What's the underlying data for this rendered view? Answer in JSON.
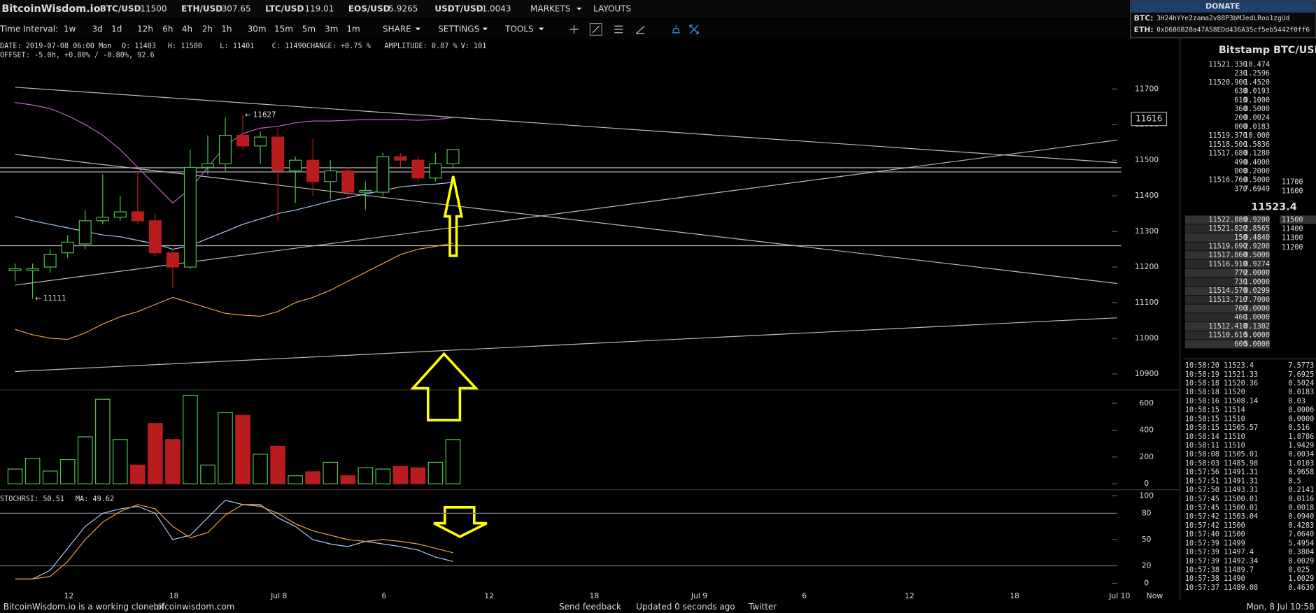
{
  "header": {
    "logo": "BitcoinWisdom.io",
    "tickers": [
      {
        "pair": "BTC/USD",
        "price": 11500
      },
      {
        "pair": "ETH/USD",
        "price": 307.65
      },
      {
        "pair": "LTC/USD",
        "price": 119.01
      },
      {
        "pair": "EOS/USD",
        "price": 5.9265
      },
      {
        "pair": "USDT/USD",
        "price": 1.0043
      }
    ],
    "menus": [
      "MARKETS",
      "LAYOUTS"
    ]
  },
  "donate": {
    "title": "DONATE",
    "rows": [
      {
        "coin": "BTC:",
        "address": "3H24hYYe2zama2v88P3bMJedLRoo1zgUd"
      },
      {
        "coin": "ETH:",
        "address": "0xD686B28a47A58EDd436A35cf5eb5442f0ff6"
      }
    ]
  },
  "toolbar": {
    "label": "Time Interval:",
    "intervals": [
      "1w",
      "3d",
      "1d",
      "12h",
      "6h",
      "4h",
      "2h",
      "1h",
      "30m",
      "15m",
      "5m",
      "3m",
      "1m"
    ],
    "active": "1h",
    "menus": [
      "SHARE",
      "SETTINGS",
      "TOOLS"
    ]
  },
  "info": {
    "line1": [
      "DATE: 2019-07-08 06:00 Mon",
      "O: 11403",
      "H: 11500",
      "L: 11401",
      "C: 11490",
      "CHANGE: +0.75 %",
      "AMPLITUDE: 0.87 %",
      "V: 101"
    ],
    "line2": "OFFSET: -5.0h, +0.80% / -0.80%, 92.6"
  },
  "chart_data": {
    "type": "candlestick",
    "up_color": "#4fc04f",
    "down_color": "#b81c1c",
    "x_labels": [
      "12",
      "18",
      "Jul 8",
      "6",
      "12",
      "18",
      "Jul 9",
      "6",
      "12",
      "18",
      "Jul 10"
    ],
    "now_label": "Now",
    "open": [
      11190,
      11190,
      11200,
      11240,
      11265,
      11330,
      11340,
      11355,
      11330,
      11240,
      11200,
      11480,
      11490,
      11570,
      11540,
      11565,
      11470,
      11500,
      11440,
      11470,
      11410,
      11410,
      11510,
      11500,
      11450,
      11490
    ],
    "high": [
      11210,
      11210,
      11250,
      11290,
      11360,
      11460,
      11400,
      11470,
      11350,
      11250,
      11530,
      11570,
      11620,
      11627,
      11580,
      11590,
      11510,
      11560,
      11500,
      11480,
      11440,
      11520,
      11520,
      11510,
      11520,
      11530
    ],
    "low": [
      11160,
      11111,
      11185,
      11225,
      11250,
      11320,
      11330,
      11320,
      11230,
      11140,
      11195,
      11460,
      11470,
      11530,
      11490,
      11330,
      11380,
      11400,
      11390,
      11390,
      11360,
      11400,
      11480,
      11440,
      11440,
      11480
    ],
    "close": [
      11195,
      11195,
      11235,
      11270,
      11330,
      11340,
      11355,
      11330,
      11240,
      11200,
      11480,
      11490,
      11570,
      11540,
      11565,
      11470,
      11500,
      11440,
      11470,
      11410,
      11415,
      11510,
      11500,
      11450,
      11490,
      11530
    ],
    "ylim": [
      10855,
      11832
    ],
    "yticks": [
      10900,
      11000,
      11100,
      11200,
      11300,
      11400,
      11500,
      11600,
      11700
    ],
    "annotations": [
      "← 11627",
      "← 11111"
    ],
    "price_tag": 11616,
    "overlays": [
      {
        "color": "#c060c8",
        "values": [
          11662,
          11655,
          11645,
          11625,
          11600,
          11570,
          11530,
          11480,
          11430,
          11380,
          11420,
          11480,
          11540,
          11575,
          11590,
          11595,
          11605,
          11610,
          11610,
          11612,
          11614,
          11614,
          11614,
          11612,
          11614,
          11620
        ]
      },
      {
        "color": "#a8c8ff",
        "values": [
          11342,
          11330,
          11320,
          11310,
          11300,
          11290,
          11285,
          11275,
          11265,
          11250,
          11260,
          11280,
          11300,
          11320,
          11335,
          11350,
          11360,
          11372,
          11385,
          11395,
          11405,
          11415,
          11425,
          11430,
          11433,
          11438
        ]
      },
      {
        "color": "#f0a040",
        "values": [
          11025,
          11010,
          11000,
          10997,
          11015,
          11040,
          11060,
          11075,
          11095,
          11115,
          11100,
          11085,
          11070,
          11065,
          11062,
          11075,
          11100,
          11115,
          11135,
          11160,
          11185,
          11210,
          11235,
          11250,
          11258,
          11267
        ]
      }
    ],
    "volume": {
      "values": [
        110,
        190,
        95,
        180,
        350,
        630,
        330,
        140,
        450,
        330,
        660,
        140,
        530,
        510,
        220,
        280,
        60,
        90,
        160,
        60,
        120,
        110,
        130,
        120,
        160,
        330
      ],
      "ylim": [
        -19,
        681
      ],
      "yticks": [
        0,
        200,
        400,
        600
      ]
    },
    "stochrsi": {
      "label": "STOCHRSI: 50.51",
      "ma_label": "MA: 49.62",
      "k_color": "#a8c8ff",
      "d_color": "#f0a040",
      "k": [
        5,
        5,
        15,
        40,
        65,
        80,
        85,
        88,
        80,
        50,
        55,
        75,
        95,
        90,
        90,
        75,
        65,
        50,
        45,
        42,
        48,
        45,
        42,
        38,
        30,
        25
      ],
      "d": [
        5,
        5,
        8,
        25,
        50,
        70,
        82,
        90,
        85,
        65,
        52,
        58,
        78,
        90,
        88,
        80,
        68,
        60,
        55,
        50,
        48,
        50,
        48,
        45,
        40,
        35
      ],
      "ylim": [
        -6,
        105
      ],
      "yticks": [
        0,
        20,
        50,
        80,
        100
      ]
    }
  },
  "orderbook": {
    "title": "Bitstamp BTC/USD",
    "asks": [
      [
        "11521.330",
        "10.474"
      ],
      [
        "230",
        "1.2596"
      ],
      [
        "11520.900",
        "1.4520"
      ],
      [
        "630",
        "0.0193"
      ],
      [
        "610",
        "0.1000"
      ],
      [
        "360",
        "0.5000"
      ],
      [
        "200",
        "0.0024"
      ],
      [
        "000",
        "0.0183"
      ],
      [
        "11519.370",
        "10.000"
      ],
      [
        "11518.500",
        "1.5836"
      ],
      [
        "11517.680",
        "0.1280"
      ],
      [
        "490",
        "0.4000"
      ],
      [
        "000",
        "0.2000"
      ],
      [
        "11516.760",
        "0.5000"
      ],
      [
        "370",
        "7.6949"
      ]
    ],
    "ask_depth": [
      "11700",
      "11600"
    ],
    "last": "11523.4",
    "bids": [
      [
        "11522.880",
        "0.9200"
      ],
      [
        "11521.820",
        "2.8565"
      ],
      [
        "150",
        "0.4840"
      ],
      [
        "11519.690",
        "2.9200"
      ],
      [
        "11517.860",
        "0.5000"
      ],
      [
        "11516.910",
        "0.9274"
      ],
      [
        "770",
        "2.0000"
      ],
      [
        "730",
        "1.0000"
      ],
      [
        "11514.570",
        "0.0299"
      ],
      [
        "11513.710",
        "7.7000"
      ],
      [
        "700",
        "3.0000"
      ],
      [
        "460",
        "1.0000"
      ],
      [
        "11512.410",
        "0.1302"
      ],
      [
        "11510.610",
        "5.0000"
      ],
      [
        "600",
        "5.0000"
      ]
    ],
    "bid_depth": [
      "11500",
      "11400",
      "11300",
      "11200"
    ]
  },
  "trades": [
    [
      "10:58:20",
      "11523.4",
      "7.5773",
      "up"
    ],
    [
      "10:58:19",
      "11521.33",
      "7.6925",
      "up"
    ],
    [
      "10:58:18",
      "11520.36",
      "0.5024",
      "up"
    ],
    [
      "10:58:18",
      "11520",
      "0.0183",
      "up"
    ],
    [
      "10:58:16",
      "11508.14",
      "0.03",
      "down"
    ],
    [
      "10:58:15",
      "11514",
      "0.0006",
      "up"
    ],
    [
      "10:58:15",
      "11510",
      "0.0000",
      "up"
    ],
    [
      "10:58:15",
      "11505.57",
      "0.516",
      "down"
    ],
    [
      "10:58:14",
      "11510",
      "1.8786",
      "up"
    ],
    [
      "10:58:11",
      "11510",
      "1.9429",
      "up"
    ],
    [
      "10:58:08",
      "11505.01",
      "0.0034",
      "down"
    ],
    [
      "10:58:03",
      "11485.98",
      "1.0103",
      "down"
    ],
    [
      "10:57:56",
      "11491.31",
      "0.9658",
      "down"
    ],
    [
      "10:57:51",
      "11491.31",
      "0.5",
      "down"
    ],
    [
      "10:57:50",
      "11493.31",
      "0.2141",
      "up"
    ],
    [
      "10:57:45",
      "11500.01",
      "0.0116",
      "up"
    ],
    [
      "10:57:45",
      "11500.01",
      "0.0018",
      "up"
    ],
    [
      "10:57:42",
      "11503.04",
      "0.0940",
      "up"
    ],
    [
      "10:57:42",
      "11500",
      "0.4283",
      "down"
    ],
    [
      "10:57:40",
      "11500",
      "7.0640",
      "up"
    ],
    [
      "10:57:39",
      "11499",
      "5.4954",
      "up"
    ],
    [
      "10:57:39",
      "11497.4",
      "0.3804",
      "up"
    ],
    [
      "10:57:39",
      "11492.34",
      "0.0029",
      "up"
    ],
    [
      "10:57:38",
      "11489.7",
      "0.025",
      "down"
    ],
    [
      "10:57:38",
      "11490",
      "1.0029",
      "up"
    ],
    [
      "10:57:37",
      "11489.08",
      "0.4630",
      "up"
    ]
  ],
  "footer": {
    "text": "BitcoinWisdom.io is a working clone of",
    "link": "bitcoinwisdom.com",
    "feedback": "Send feedback",
    "updated": "Updated 0 seconds ago",
    "twitter": "Twitter",
    "clock": "Mon, 8 Jul 10:58"
  }
}
